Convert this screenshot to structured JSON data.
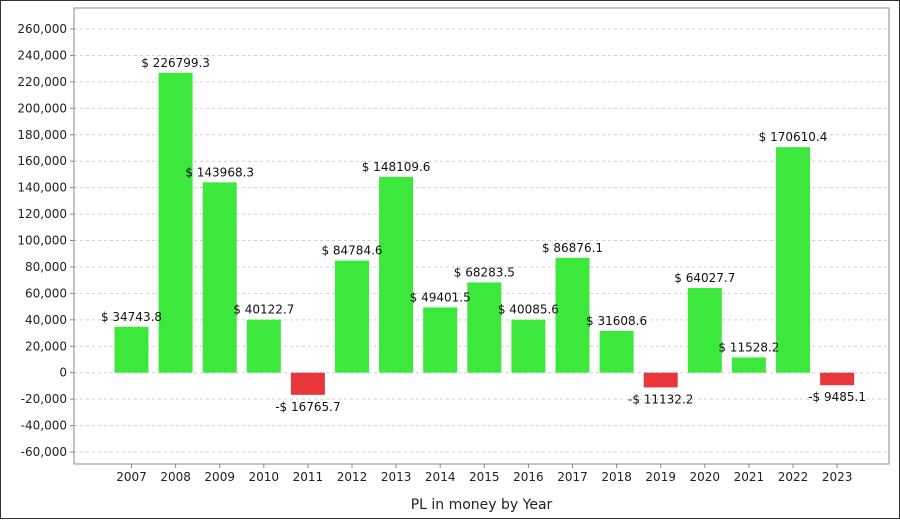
{
  "chart_data": {
    "type": "bar",
    "title": "",
    "xlabel": "PL in money by Year",
    "ylabel": "",
    "ylim": [
      -60000,
      260000
    ],
    "y_ticks": [
      260000,
      240000,
      220000,
      200000,
      180000,
      160000,
      140000,
      120000,
      100000,
      80000,
      60000,
      40000,
      20000,
      0,
      -20000,
      -40000,
      -60000
    ],
    "y_tick_labels": [
      "260,000",
      "240,000",
      "220,000",
      "200,000",
      "180,000",
      "160,000",
      "140,000",
      "120,000",
      "100,000",
      "80,000",
      "60,000",
      "40,000",
      "20,000",
      "0",
      "-20,000",
      "-40,000",
      "-60,000"
    ],
    "grid": "horizontal dashed",
    "categories": [
      "2007",
      "2008",
      "2009",
      "2010",
      "2011",
      "2012",
      "2013",
      "2014",
      "2015",
      "2016",
      "2017",
      "2018",
      "2019",
      "2020",
      "2021",
      "2022",
      "2023"
    ],
    "values": [
      34743.8,
      226799.3,
      143968.3,
      40122.7,
      -16765.7,
      84784.6,
      148109.6,
      49401.5,
      68283.5,
      40085.6,
      86876.1,
      31608.6,
      -11132.2,
      64027.7,
      11528.2,
      170610.4,
      -9485.1
    ],
    "data_labels": [
      "$ 34743.8",
      "$ 226799.3",
      "$ 143968.3",
      "$ 40122.7",
      "-$ 16765.7",
      "$ 84784.6",
      "$ 148109.6",
      "$ 49401.5",
      "$ 68283.5",
      "$ 40085.6",
      "$ 86876.1",
      "$ 31608.6",
      "-$ 11132.2",
      "$ 64027.7",
      "$ 11528.2",
      "$ 170610.4",
      "-$ 9485.1"
    ],
    "colors": {
      "positive": "#3de83d",
      "negative": "#e8363b",
      "grid": "#d0d0d0",
      "axis": "#888888"
    }
  }
}
